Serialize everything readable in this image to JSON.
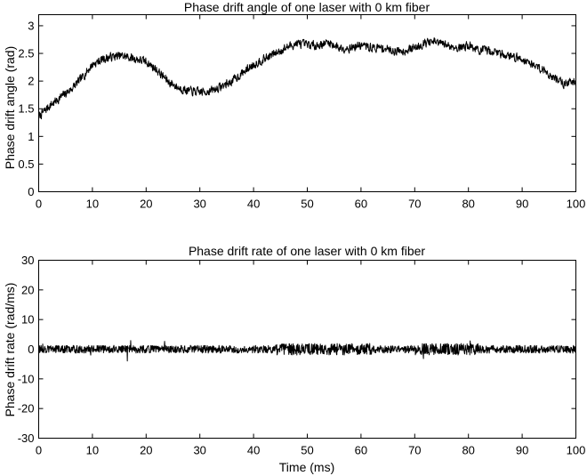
{
  "chart_data": [
    {
      "type": "line",
      "title": "Phase drift angle of one laser with 0 km fiber",
      "xlabel": "",
      "ylabel": "Phase drift angle (rad)",
      "xlim": [
        0,
        100
      ],
      "ylim": [
        0,
        3.2
      ],
      "x_ticks": [
        "0",
        "10",
        "20",
        "30",
        "40",
        "50",
        "60",
        "70",
        "80",
        "90",
        "100"
      ],
      "y_ticks": [
        "0",
        "0.5",
        "1",
        "1.5",
        "2",
        "2.5",
        "3"
      ],
      "grid": false,
      "noise_amplitude": 0.07,
      "series": [
        {
          "x": [
            0,
            2,
            4,
            6,
            8,
            10,
            12,
            14,
            16,
            18,
            20,
            22,
            24,
            26,
            28,
            30,
            32,
            34,
            36,
            38,
            40,
            42,
            44,
            46,
            48,
            50,
            52,
            54,
            56,
            58,
            60,
            62,
            64,
            66,
            68,
            70,
            72,
            74,
            76,
            78,
            80,
            82,
            84,
            86,
            88,
            90,
            92,
            94,
            96,
            98,
            100
          ],
          "y": [
            1.35,
            1.55,
            1.7,
            1.85,
            2.05,
            2.3,
            2.4,
            2.45,
            2.45,
            2.4,
            2.35,
            2.2,
            2.0,
            1.88,
            1.82,
            1.8,
            1.82,
            1.9,
            2.0,
            2.15,
            2.3,
            2.4,
            2.5,
            2.6,
            2.68,
            2.65,
            2.65,
            2.7,
            2.6,
            2.6,
            2.65,
            2.6,
            2.6,
            2.55,
            2.55,
            2.6,
            2.7,
            2.7,
            2.65,
            2.6,
            2.65,
            2.55,
            2.55,
            2.5,
            2.45,
            2.4,
            2.3,
            2.2,
            2.05,
            1.95,
            2.0
          ]
        }
      ]
    },
    {
      "type": "line",
      "title": "Phase drift rate of one laser with 0 km fiber",
      "xlabel": "Time (ms)",
      "ylabel": "Phase drift rate (rad/ms)",
      "xlim": [
        0,
        100
      ],
      "ylim": [
        -30,
        30
      ],
      "x_ticks": [
        "0",
        "10",
        "20",
        "30",
        "40",
        "50",
        "60",
        "70",
        "80",
        "90",
        "100"
      ],
      "y_ticks": [
        "-30",
        "-20",
        "-10",
        "0",
        "10",
        "20",
        "30"
      ],
      "grid": false,
      "noise_amplitude": 1.3,
      "series": [
        {
          "x": [
            0,
            10,
            20,
            30,
            40,
            45,
            50,
            55,
            60,
            65,
            70,
            75,
            80,
            90,
            100
          ],
          "y": [
            0,
            0,
            0,
            0,
            0,
            0,
            0,
            0,
            0,
            0,
            0,
            0,
            0,
            0,
            0
          ]
        }
      ]
    }
  ]
}
